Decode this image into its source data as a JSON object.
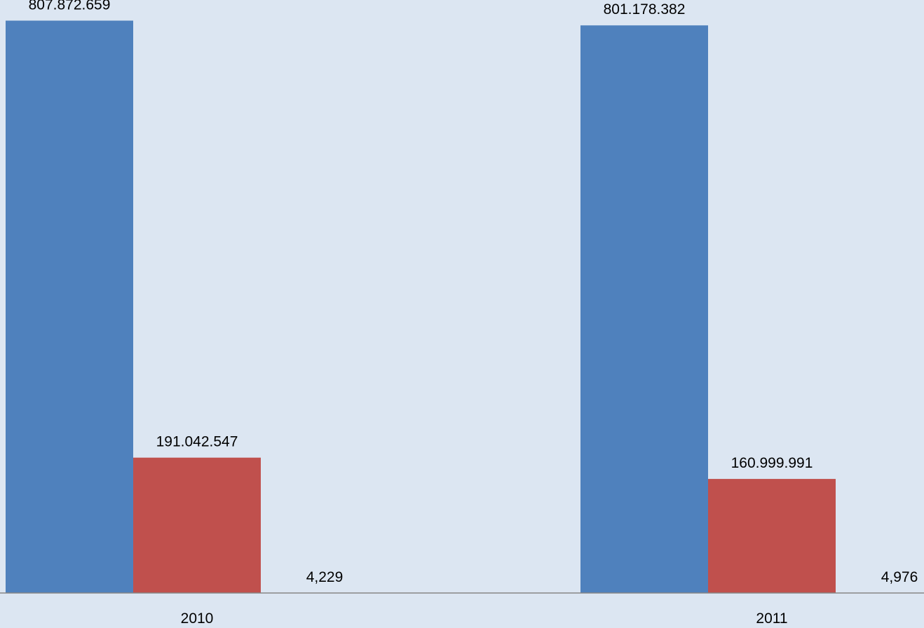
{
  "chart_data": {
    "type": "bar",
    "categories": [
      "2010",
      "2011"
    ],
    "series": [
      {
        "values": [
          807872659,
          801178382
        ],
        "labels": [
          "807.872.659",
          "801.178.382"
        ],
        "color": "#4f81bd"
      },
      {
        "values": [
          191042547,
          160999991
        ],
        "labels": [
          "191.042.547",
          "160.999.991"
        ],
        "color": "#c0504d"
      },
      {
        "values": [
          4.229,
          4.976
        ],
        "labels": [
          "4,229",
          "4,976"
        ],
        "color": "#9bbb59"
      }
    ],
    "ylim": [
      0,
      837000000
    ],
    "grid": false,
    "background": "#dce6f2",
    "axis_color": "#868686"
  }
}
